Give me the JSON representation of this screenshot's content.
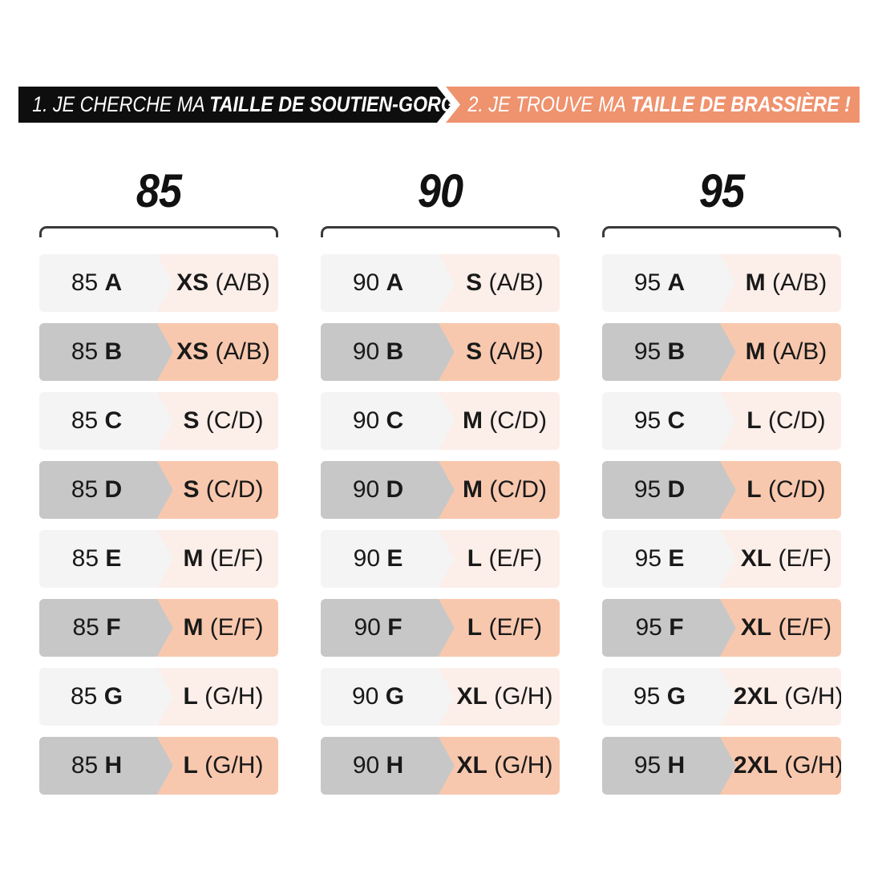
{
  "banner": {
    "step1": {
      "prefix": "1. JE CHERCHE MA ",
      "bold": "TAILLE DE SOUTIEN-GORGE..."
    },
    "step2": {
      "prefix": "2. JE TROUVE MA ",
      "bold": "TAILLE DE BRASSIÈRE !"
    }
  },
  "colors": {
    "banner_black": "#0e0e0e",
    "banner_salmon": "#ef926e",
    "row_light_gray": "#f4f4f4",
    "row_light_pink": "#fceee9",
    "row_dark_gray": "#c7c7c7",
    "row_dark_salmon": "#f8c8ae",
    "text": "#191919"
  },
  "chart_data": {
    "type": "table",
    "column_headers": [
      "85",
      "90",
      "95"
    ],
    "groups": [
      {
        "header": "85",
        "rows": [
          {
            "band": "85",
            "cup": "A",
            "size": "XS",
            "range": "(A/B)"
          },
          {
            "band": "85",
            "cup": "B",
            "size": "XS",
            "range": "(A/B)"
          },
          {
            "band": "85",
            "cup": "C",
            "size": "S",
            "range": "(C/D)"
          },
          {
            "band": "85",
            "cup": "D",
            "size": "S",
            "range": "(C/D)"
          },
          {
            "band": "85",
            "cup": "E",
            "size": "M",
            "range": "(E/F)"
          },
          {
            "band": "85",
            "cup": "F",
            "size": "M",
            "range": "(E/F)"
          },
          {
            "band": "85",
            "cup": "G",
            "size": "L",
            "range": "(G/H)"
          },
          {
            "band": "85",
            "cup": "H",
            "size": "L",
            "range": "(G/H)"
          }
        ]
      },
      {
        "header": "90",
        "rows": [
          {
            "band": "90",
            "cup": "A",
            "size": "S",
            "range": "(A/B)"
          },
          {
            "band": "90",
            "cup": "B",
            "size": "S",
            "range": "(A/B)"
          },
          {
            "band": "90",
            "cup": "C",
            "size": "M",
            "range": "(C/D)"
          },
          {
            "band": "90",
            "cup": "D",
            "size": "M",
            "range": "(C/D)"
          },
          {
            "band": "90",
            "cup": "E",
            "size": "L",
            "range": "(E/F)"
          },
          {
            "band": "90",
            "cup": "F",
            "size": "L",
            "range": "(E/F)"
          },
          {
            "band": "90",
            "cup": "G",
            "size": "XL",
            "range": "(G/H)"
          },
          {
            "band": "90",
            "cup": "H",
            "size": "XL",
            "range": "(G/H)"
          }
        ]
      },
      {
        "header": "95",
        "rows": [
          {
            "band": "95",
            "cup": "A",
            "size": "M",
            "range": "(A/B)"
          },
          {
            "band": "95",
            "cup": "B",
            "size": "M",
            "range": "(A/B)"
          },
          {
            "band": "95",
            "cup": "C",
            "size": "L",
            "range": "(C/D)"
          },
          {
            "band": "95",
            "cup": "D",
            "size": "L",
            "range": "(C/D)"
          },
          {
            "band": "95",
            "cup": "E",
            "size": "XL",
            "range": "(E/F)"
          },
          {
            "band": "95",
            "cup": "F",
            "size": "XL",
            "range": "(E/F)"
          },
          {
            "band": "95",
            "cup": "G",
            "size": "2XL",
            "range": "(G/H)"
          },
          {
            "band": "95",
            "cup": "H",
            "size": "2XL",
            "range": "(G/H)"
          }
        ]
      }
    ]
  }
}
